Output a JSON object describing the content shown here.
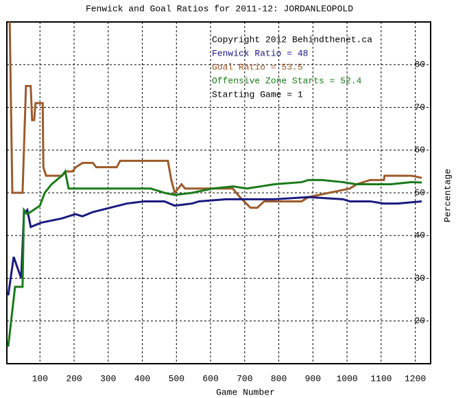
{
  "chart_data": {
    "type": "line",
    "title": "Fenwick and Goal Ratios for 2011-12: JORDANLEOPOLD",
    "x_label": "Game Number",
    "y_label": "Percentage",
    "annotations": [
      {
        "text": "Copyright 2012 Behindthenet.ca",
        "color": "#000000"
      },
      {
        "text": "Fenwick Ratio = 48",
        "color": "#1a1a80"
      },
      {
        "text": "Goal Ratio = 53.5",
        "color": "#9c5a2a"
      },
      {
        "text": "Offensive Zone Starts = 52.4",
        "color": "#1a7a1a"
      },
      {
        "text": "Starting Game = 1",
        "color": "#000000"
      }
    ],
    "xlim": [
      3,
      1245
    ],
    "ylim": [
      10,
      90
    ],
    "xticks": [
      100,
      200,
      300,
      400,
      500,
      600,
      700,
      800,
      900,
      1000,
      1100,
      1200
    ],
    "yticks": [
      20,
      30,
      40,
      50,
      60,
      70,
      80
    ],
    "grid": true,
    "series": [
      {
        "color": "#9c5a2a",
        "x": [
          11,
          19,
          49,
          59,
          73,
          77,
          83,
          87,
          108,
          110,
          118,
          165,
          175,
          195,
          205,
          225,
          255,
          265,
          325,
          335,
          475,
          485,
          495,
          515,
          525,
          665,
          686,
          717,
          737,
          757,
          867,
          887,
          1008,
          1028,
          1068,
          1108,
          1110,
          1189,
          1219
        ],
        "values": [
          92,
          50,
          50,
          75,
          75,
          67,
          67,
          71,
          71,
          56,
          54,
          54,
          55,
          55,
          56,
          57,
          57,
          56,
          56,
          57.5,
          57.5,
          53,
          50,
          52,
          51,
          51,
          49,
          46.5,
          46.5,
          48,
          48,
          49,
          51,
          52,
          53,
          53,
          54,
          54,
          53.5
        ]
      },
      {
        "color": "#1a1a80",
        "x": [
          7,
          23,
          45,
          53,
          63,
          73,
          103,
          164,
          204,
          224,
          255,
          305,
          355,
          405,
          465,
          495,
          546,
          566,
          646,
          787,
          887,
          988,
          1008,
          1068,
          1108,
          1148,
          1219
        ],
        "values": [
          26,
          35,
          30,
          45,
          46,
          42,
          43,
          44,
          45,
          44.5,
          45.5,
          46.5,
          47.5,
          48,
          48,
          47,
          47.5,
          48,
          48.5,
          48.5,
          49,
          48.5,
          48,
          48,
          47.5,
          47.5,
          48
        ]
      },
      {
        "color": "#1a7a1a",
        "x": [
          7,
          27,
          49,
          53,
          63,
          100,
          114,
          134,
          164,
          174,
          184,
          264,
          425,
          465,
          495,
          546,
          606,
          666,
          706,
          787,
          867,
          887,
          927,
          988,
          1028,
          1128,
          1189,
          1219
        ],
        "values": [
          14,
          28,
          28,
          46,
          45,
          47,
          50,
          52,
          54,
          55,
          51,
          51,
          51,
          50,
          49.5,
          50,
          51,
          51.5,
          51,
          52,
          52.5,
          53,
          53,
          52.5,
          52,
          52,
          52.5,
          52.4
        ]
      }
    ]
  }
}
